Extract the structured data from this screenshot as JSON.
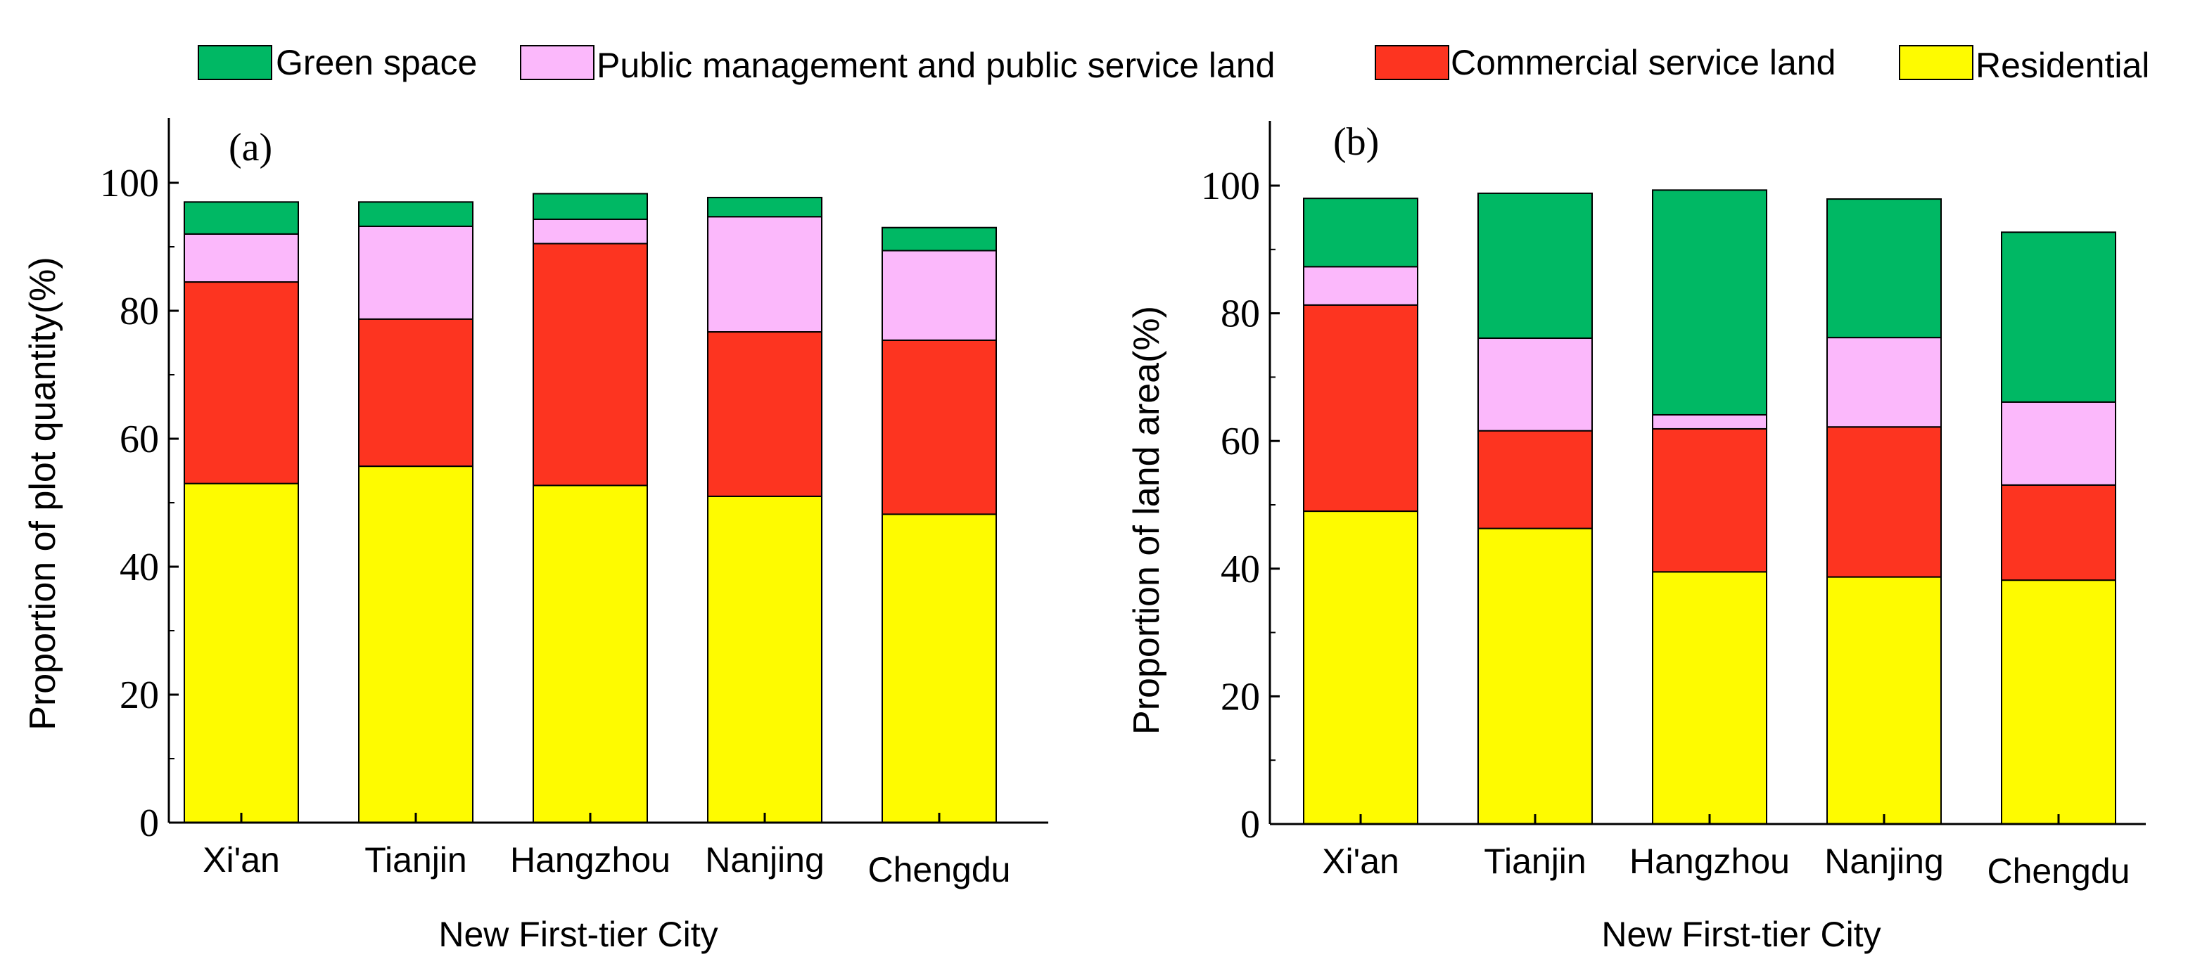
{
  "legend": {
    "placement": "top",
    "entries": [
      {
        "label": "Green space",
        "color": "#00b864"
      },
      {
        "label": "Public management and public service land",
        "color": "#fbb8fb"
      },
      {
        "label": "Commercial service land",
        "color": "#fd3420"
      },
      {
        "label": "Residential",
        "color": "#fefb00"
      }
    ]
  },
  "chart_data": [
    {
      "type": "bar",
      "stacked": true,
      "panel_label": "(a)",
      "xlabel": "New First-tier City",
      "ylabel": "Proportion of plot quantity(%)",
      "ylim": [
        0,
        110
      ],
      "yticks": [
        "0",
        "20",
        "40",
        "60",
        "80",
        "100"
      ],
      "categories": [
        "Xi'an",
        "Tianjin",
        "Hangzhou",
        "Nanjing",
        "Chengdu"
      ],
      "series": [
        {
          "name": "Residential",
          "color": "#fefb00",
          "values": [
            53,
            55.7,
            52.7,
            51,
            48.2
          ]
        },
        {
          "name": "Commercial service land",
          "color": "#fd3420",
          "values": [
            31.5,
            23,
            37.8,
            25.7,
            27.2
          ]
        },
        {
          "name": "Public management and public service land",
          "color": "#fbb8fb",
          "values": [
            7.5,
            14.5,
            3.8,
            18,
            14
          ]
        },
        {
          "name": "Green space",
          "color": "#00b864",
          "values": [
            5,
            3.8,
            4,
            3,
            3.6
          ]
        }
      ]
    },
    {
      "type": "bar",
      "stacked": true,
      "panel_label": "(b)",
      "xlabel": "New First-tier City",
      "ylabel": "Proportion of land area(%)",
      "ylim": [
        0,
        110
      ],
      "yticks": [
        "0",
        "20",
        "40",
        "60",
        "80",
        "100"
      ],
      "categories": [
        "Xi'an",
        "Tianjin",
        "Hangzhou",
        "Nanjing",
        "Chengdu"
      ],
      "series": [
        {
          "name": "Residential",
          "color": "#fefb00",
          "values": [
            49,
            46.3,
            39.5,
            38.7,
            38.2
          ]
        },
        {
          "name": "Commercial service land",
          "color": "#fd3420",
          "values": [
            32.3,
            15.3,
            22.4,
            23.5,
            14.9
          ]
        },
        {
          "name": "Public management and public service land",
          "color": "#fbb8fb",
          "values": [
            6,
            14.5,
            2.2,
            14,
            13
          ]
        },
        {
          "name": "Green space",
          "color": "#00b864",
          "values": [
            10.7,
            22.7,
            35.2,
            21.7,
            26.6
          ]
        }
      ]
    }
  ]
}
